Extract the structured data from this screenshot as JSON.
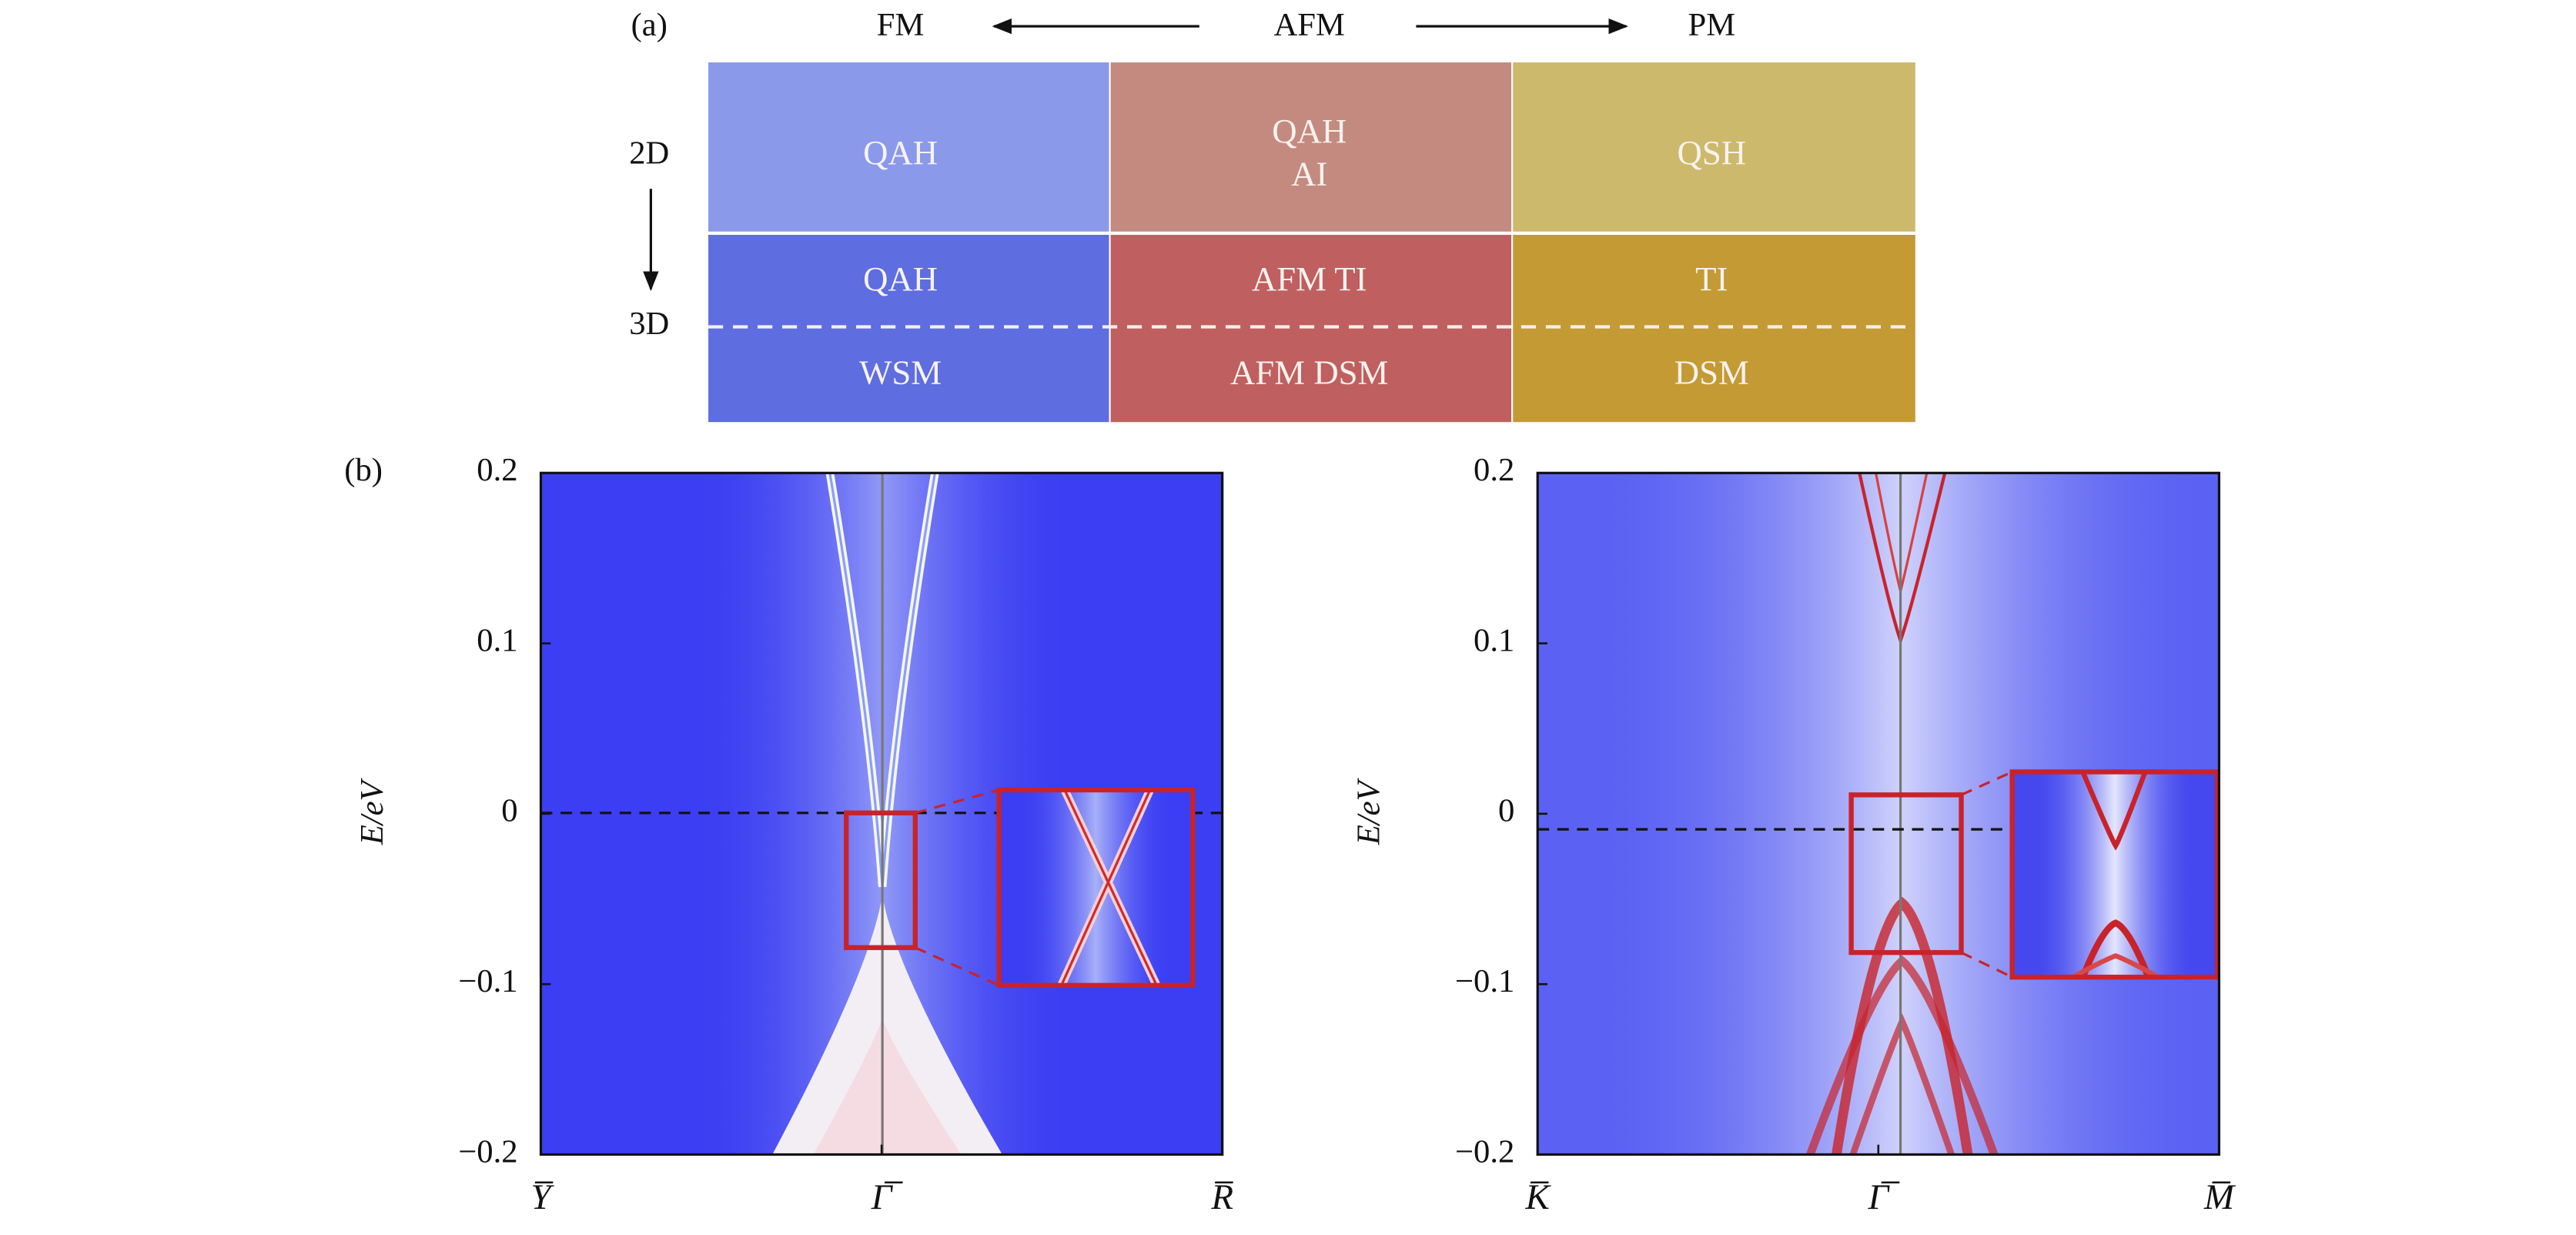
{
  "panel_a": {
    "label": "(a)",
    "columns": [
      "FM",
      "AFM",
      "PM"
    ],
    "rows": [
      "2D",
      "3D"
    ],
    "cells_2d": [
      [
        "QAH"
      ],
      [
        "QAH",
        "AI"
      ],
      [
        "QSH"
      ]
    ],
    "cells_3d_upper": [
      "QAH",
      "AFM TI",
      "TI"
    ],
    "cells_3d_lower": [
      "WSM",
      "AFM DSM",
      "DSM"
    ]
  },
  "panel_b": {
    "label": "(b)",
    "plots": [
      {
        "y_label": "E/eV",
        "ylim": [
          -0.2,
          0.2
        ],
        "yticks": [
          {
            "value": -0.2,
            "label": "−0.2"
          },
          {
            "value": -0.1,
            "label": "−0.1"
          },
          0,
          0.1,
          0.2
        ],
        "x_labels": [
          "Y̅",
          "Γ̅",
          "R̅"
        ]
      },
      {
        "y_label": "E/eV",
        "ylim": [
          -0.2,
          0.2
        ],
        "yticks": [
          {
            "value": -0.2,
            "label": "−0.2"
          },
          {
            "value": -0.1,
            "label": "−0.1"
          },
          0,
          0.1,
          0.2
        ],
        "x_labels": [
          "K̅",
          "Γ̅",
          "M̅"
        ]
      }
    ]
  }
}
